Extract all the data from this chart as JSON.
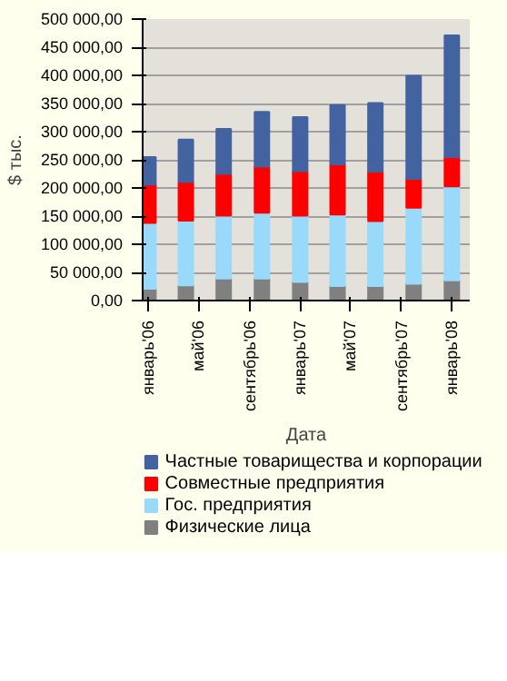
{
  "chart_data": {
    "type": "bar",
    "stacked": true,
    "xlabel": "Дата",
    "ylabel": "$ тыс.",
    "x": [
      "2006-01",
      "2006-04",
      "2006-07",
      "2006-10",
      "2007-01",
      "2007-04",
      "2007-07",
      "2007-10",
      "2008-01"
    ],
    "series": [
      {
        "name": "Физические лица",
        "color": "#808080",
        "values": [
          21000,
          27000,
          39000,
          39000,
          33000,
          26000,
          26000,
          30000,
          36000
        ]
      },
      {
        "name": "Гос. предприятия",
        "color": "#99d9fa",
        "values": [
          117000,
          115000,
          112000,
          117000,
          118000,
          127000,
          115000,
          135000,
          167000
        ]
      },
      {
        "name": "Совместные предприятия",
        "color": "#ff0000",
        "values": [
          68000,
          69000,
          74000,
          82000,
          79000,
          89000,
          88000,
          51000,
          52000
        ]
      },
      {
        "name": "Частные товарищества и корпорации",
        "color": "#4262a0",
        "values": [
          49000,
          75000,
          80000,
          97000,
          96000,
          105000,
          122000,
          183000,
          216000
        ]
      }
    ],
    "xlim": [
      "2005-12-18",
      "2008-02-13"
    ],
    "xticks": [
      {
        "value": "2006-01",
        "label": "январь'06"
      },
      {
        "value": "2006-05",
        "label": "май'06"
      },
      {
        "value": "2006-09",
        "label": "сентябрь'06"
      },
      {
        "value": "2007-01",
        "label": "январь'07"
      },
      {
        "value": "2007-05",
        "label": "май'07"
      },
      {
        "value": "2007-09",
        "label": "сентябрь'07"
      },
      {
        "value": "2008-01",
        "label": "январь'08"
      }
    ],
    "ylim": [
      0,
      500000
    ],
    "yticks": [
      {
        "value": 0,
        "label": "0,00"
      },
      {
        "value": 50000,
        "label": "50 000,00"
      },
      {
        "value": 100000,
        "label": "100 000,00"
      },
      {
        "value": 150000,
        "label": "150 000,00"
      },
      {
        "value": 200000,
        "label": "200 000,00"
      },
      {
        "value": 250000,
        "label": "250 000,00"
      },
      {
        "value": 300000,
        "label": "300 000,00"
      },
      {
        "value": 350000,
        "label": "350 000,00"
      },
      {
        "value": 400000,
        "label": "400 000,00"
      },
      {
        "value": 450000,
        "label": "450 000,00"
      },
      {
        "value": 500000,
        "label": "500 000,00"
      }
    ],
    "grid": "y",
    "legend": "bottom"
  }
}
